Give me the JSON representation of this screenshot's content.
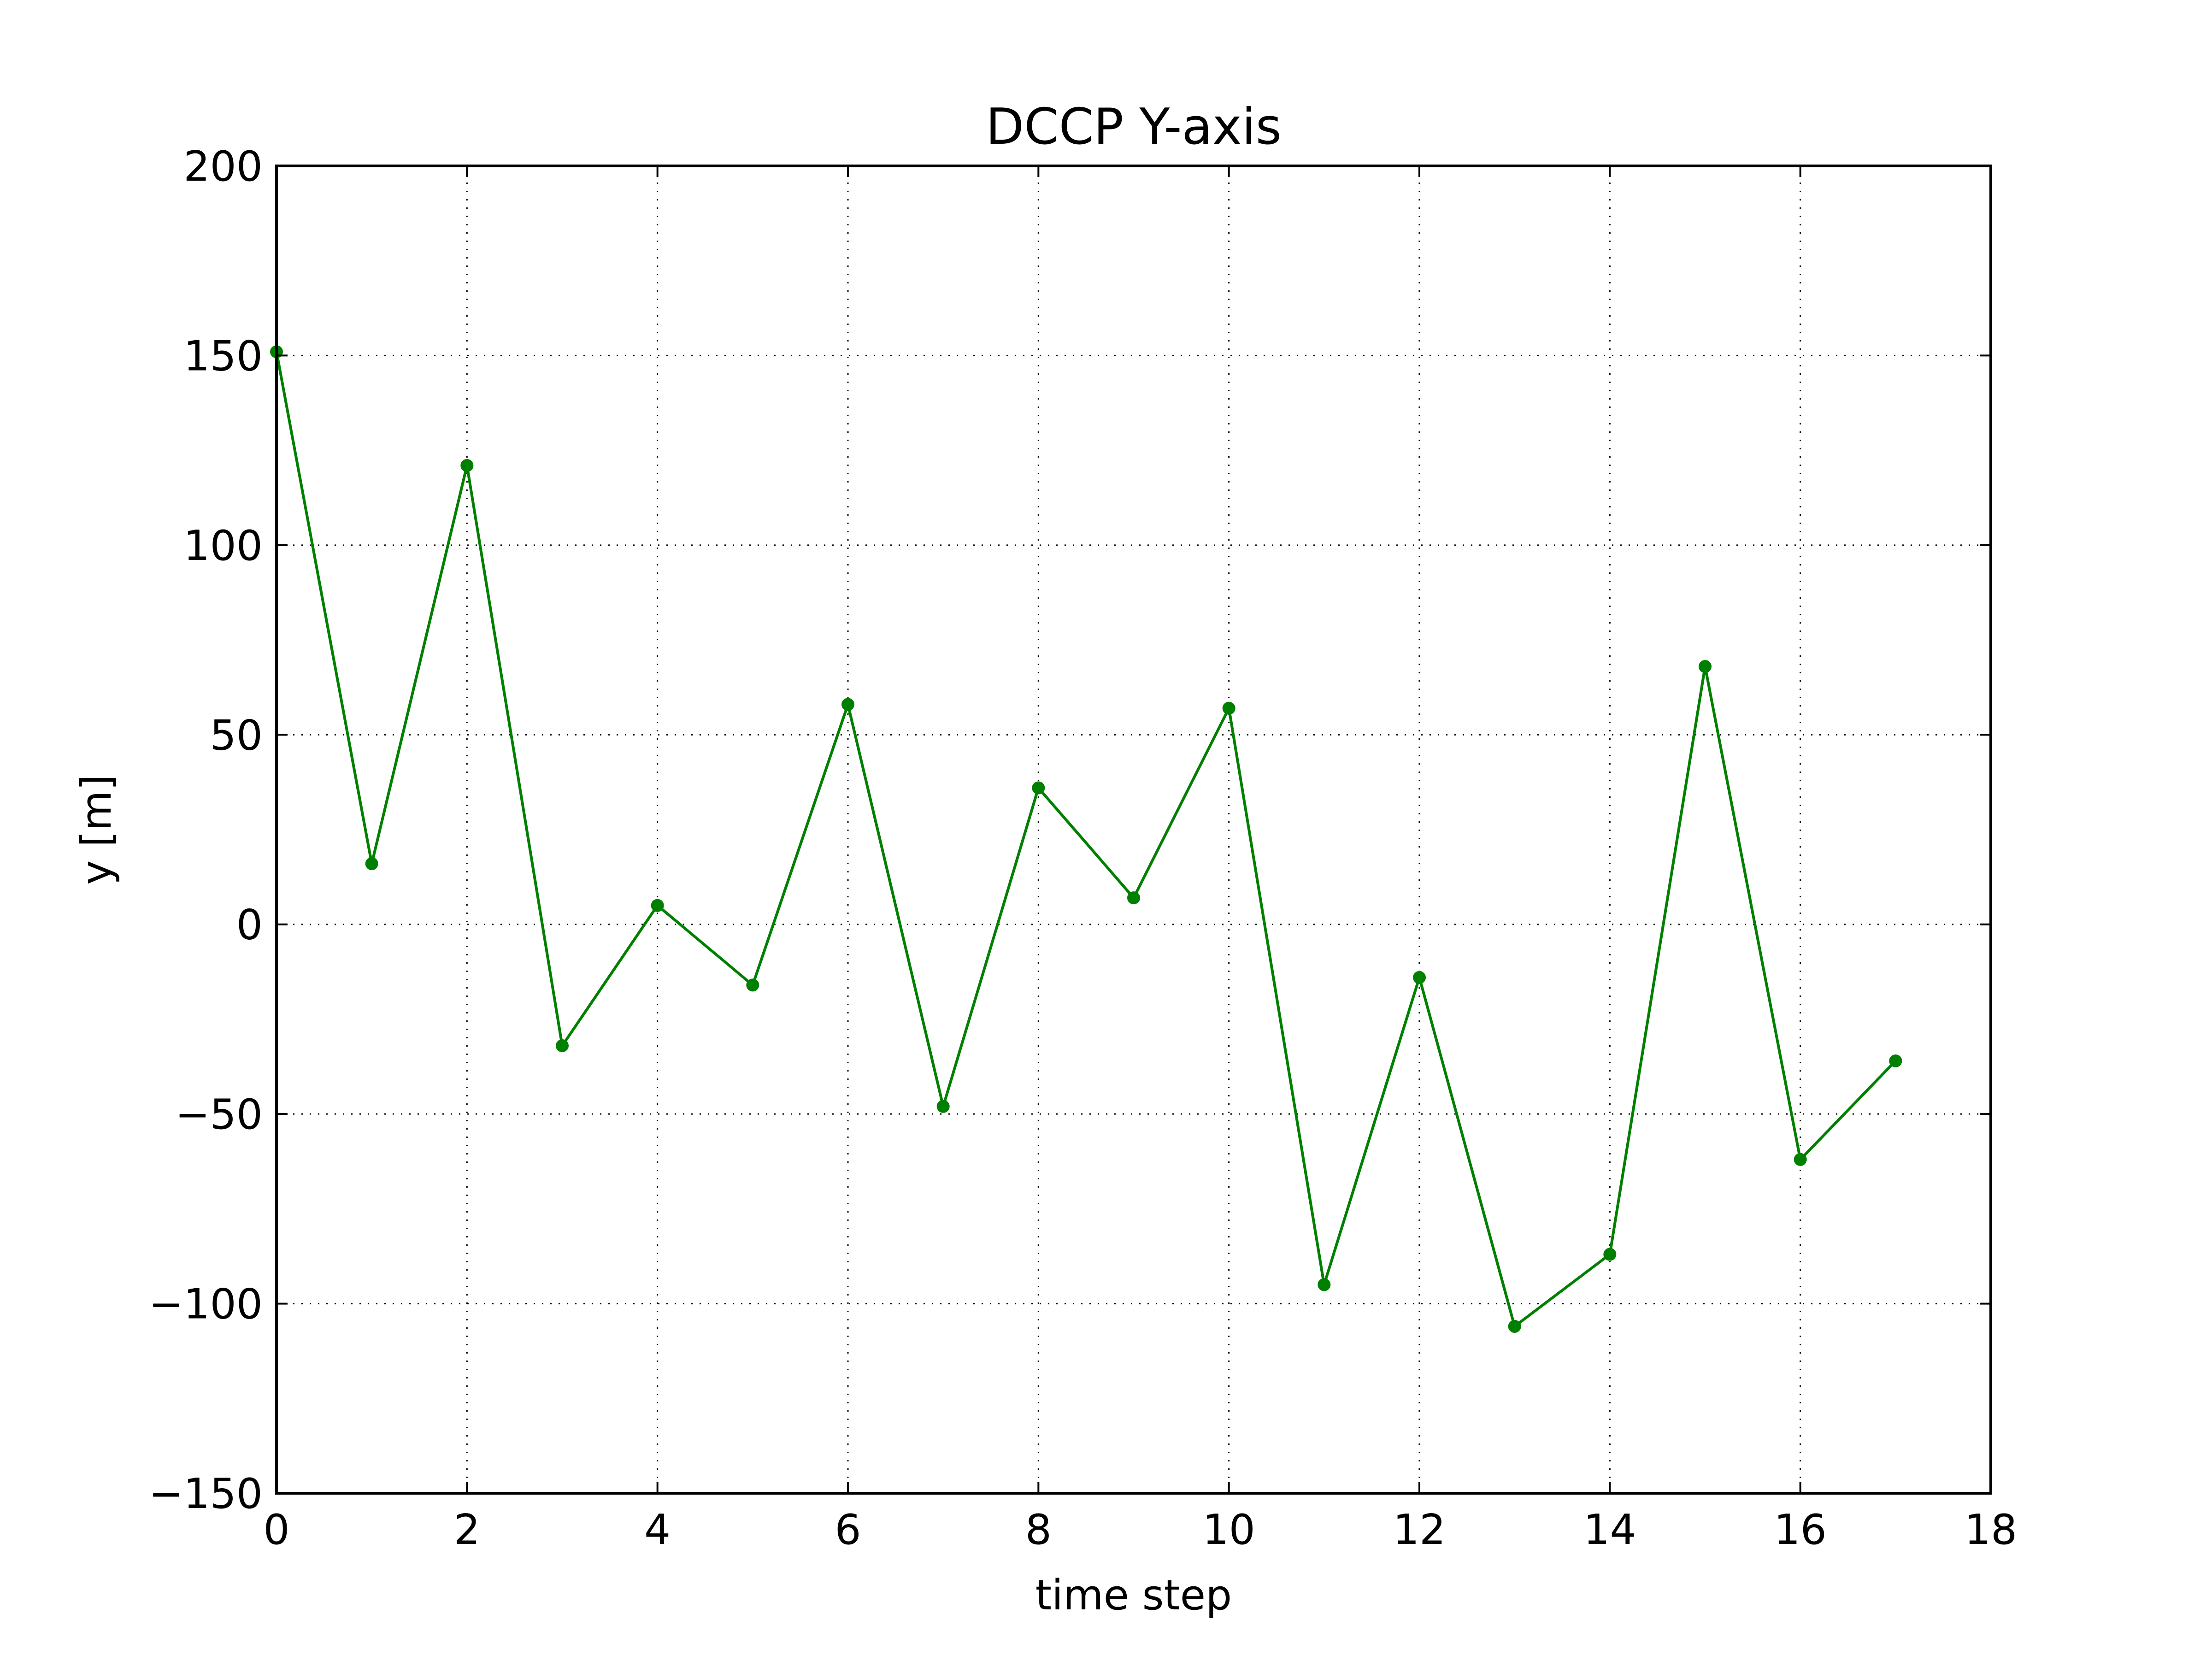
{
  "chart_data": {
    "type": "line",
    "title": "DCCP Y-axis",
    "xlabel": "time step",
    "ylabel": "y [m]",
    "xlim": [
      0,
      18
    ],
    "ylim": [
      -150,
      200
    ],
    "xticks": [
      0,
      2,
      4,
      6,
      8,
      10,
      12,
      14,
      16,
      18
    ],
    "yticks": [
      -150,
      -100,
      -50,
      0,
      50,
      100,
      150,
      200
    ],
    "xtick_labels": [
      "0",
      "2",
      "4",
      "6",
      "8",
      "10",
      "12",
      "14",
      "16",
      "18"
    ],
    "ytick_labels": [
      "−150",
      "−100",
      "−50",
      "0",
      "50",
      "100",
      "150",
      "200"
    ],
    "grid": true,
    "grid_style": "dotted",
    "series": [
      {
        "color": "#008000",
        "marker": "circle",
        "x": [
          0,
          1,
          2,
          3,
          4,
          5,
          6,
          7,
          8,
          9,
          10,
          11,
          12,
          13,
          14,
          15,
          16,
          17
        ],
        "y": [
          151,
          16,
          121,
          -32,
          5,
          -16,
          58,
          -48,
          36,
          7,
          57,
          -95,
          -14,
          -106,
          -87,
          68,
          -62,
          -36
        ]
      }
    ]
  }
}
